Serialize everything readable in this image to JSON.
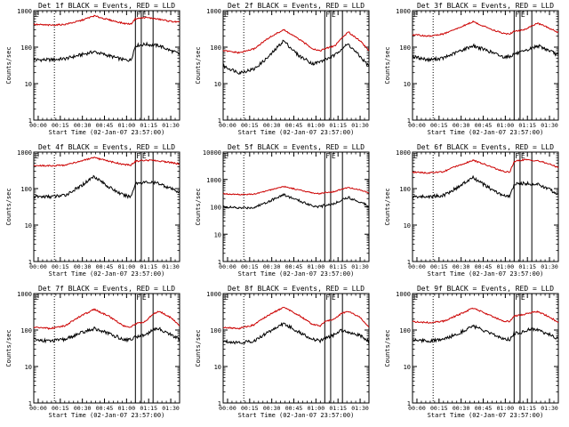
{
  "figure": {
    "xlabel": "Start Time (02-Jan-07 23:57:00)",
    "ylabel": "Counts/sec",
    "x_tick_labels": [
      "00:00",
      "00:15",
      "00:30",
      "00:45",
      "01:00",
      "01:15",
      "01:30"
    ],
    "y_tick_labels": [
      "1",
      "10",
      "100",
      "1000"
    ],
    "marker_labels": [
      "E",
      "F",
      "E"
    ],
    "colors": {
      "events": "#000000",
      "lld": "#cc0000",
      "axes": "#000000"
    }
  },
  "chart_data": [
    {
      "type": "line",
      "title": "Det 1f BLACK = Events, RED = LLD",
      "yscale": "log",
      "ylim": [
        1,
        1000
      ],
      "x": [
        "23:57",
        "00:08",
        "00:18",
        "00:28",
        "00:38",
        "00:48",
        "00:58",
        "01:03",
        "01:06",
        "01:13",
        "01:17",
        "01:22",
        "01:30",
        "01:36"
      ],
      "series": [
        {
          "name": "Events",
          "color": "#000000",
          "values": [
            45,
            45,
            48,
            60,
            75,
            58,
            45,
            44,
            110,
            120,
            115,
            110,
            80,
            65
          ]
        },
        {
          "name": "LLD",
          "color": "#cc0000",
          "values": [
            420,
            400,
            420,
            520,
            720,
            560,
            450,
            430,
            600,
            650,
            620,
            580,
            510,
            480
          ]
        }
      ]
    },
    {
      "type": "line",
      "title": "Det 2f BLACK = Events, RED = LLD",
      "yscale": "log",
      "ylim": [
        1,
        1000
      ],
      "x": [
        "23:57",
        "00:08",
        "00:18",
        "00:28",
        "00:38",
        "00:48",
        "00:58",
        "01:03",
        "01:06",
        "01:13",
        "01:17",
        "01:22",
        "01:30",
        "01:36"
      ],
      "series": [
        {
          "name": "Events",
          "color": "#000000",
          "values": [
            30,
            20,
            25,
            55,
            150,
            60,
            35,
            40,
            45,
            60,
            90,
            120,
            55,
            30
          ]
        },
        {
          "name": "LLD",
          "color": "#cc0000",
          "values": [
            80,
            70,
            90,
            180,
            300,
            170,
            90,
            80,
            90,
            110,
            170,
            260,
            150,
            80
          ]
        }
      ]
    },
    {
      "type": "line",
      "title": "Det 3f BLACK = Events, RED = LLD",
      "yscale": "log",
      "ylim": [
        1,
        1000
      ],
      "x": [
        "23:57",
        "00:08",
        "00:18",
        "00:28",
        "00:38",
        "00:48",
        "00:58",
        "01:03",
        "01:06",
        "01:13",
        "01:17",
        "01:22",
        "01:30",
        "01:36"
      ],
      "series": [
        {
          "name": "Events",
          "color": "#000000",
          "values": [
            55,
            45,
            50,
            75,
            110,
            80,
            55,
            55,
            65,
            75,
            90,
            110,
            80,
            60
          ]
        },
        {
          "name": "LLD",
          "color": "#cc0000",
          "values": [
            220,
            200,
            230,
            330,
            500,
            340,
            240,
            230,
            270,
            300,
            370,
            450,
            330,
            250
          ]
        }
      ]
    },
    {
      "type": "line",
      "title": "Det 4f BLACK = Events, RED = LLD",
      "yscale": "log",
      "ylim": [
        1,
        1000
      ],
      "x": [
        "23:57",
        "00:08",
        "00:18",
        "00:28",
        "00:38",
        "00:48",
        "00:58",
        "01:03",
        "01:06",
        "01:13",
        "01:17",
        "01:22",
        "01:30",
        "01:36"
      ],
      "series": [
        {
          "name": "Events",
          "color": "#000000",
          "values": [
            60,
            60,
            65,
            110,
            220,
            110,
            65,
            60,
            140,
            150,
            145,
            140,
            100,
            80
          ]
        },
        {
          "name": "LLD",
          "color": "#cc0000",
          "values": [
            430,
            420,
            440,
            560,
            700,
            560,
            460,
            440,
            560,
            600,
            590,
            570,
            520,
            470
          ]
        }
      ]
    },
    {
      "type": "line",
      "title": "Det 5f BLACK = Events, RED = LLD",
      "yscale": "log",
      "ylim": [
        1,
        10000
      ],
      "x": [
        "23:57",
        "00:08",
        "00:18",
        "00:28",
        "00:38",
        "00:48",
        "00:58",
        "01:03",
        "01:06",
        "01:13",
        "01:17",
        "01:22",
        "01:30",
        "01:36"
      ],
      "series": [
        {
          "name": "Events",
          "color": "#000000",
          "values": [
            100,
            90,
            95,
            160,
            280,
            170,
            110,
            100,
            115,
            130,
            180,
            220,
            150,
            110
          ]
        },
        {
          "name": "LLD",
          "color": "#cc0000",
          "values": [
            300,
            280,
            290,
            400,
            560,
            420,
            320,
            300,
            330,
            360,
            440,
            500,
            420,
            320
          ]
        }
      ]
    },
    {
      "type": "line",
      "title": "Det 6f BLACK = Events, RED = LLD",
      "yscale": "log",
      "ylim": [
        1,
        1000
      ],
      "x": [
        "23:57",
        "00:08",
        "00:18",
        "00:28",
        "00:38",
        "00:48",
        "00:58",
        "01:03",
        "01:06",
        "01:13",
        "01:17",
        "01:22",
        "01:30",
        "01:36"
      ],
      "series": [
        {
          "name": "Events",
          "color": "#000000",
          "values": [
            60,
            60,
            65,
            110,
            200,
            110,
            65,
            60,
            130,
            140,
            135,
            130,
            95,
            70
          ]
        },
        {
          "name": "LLD",
          "color": "#cc0000",
          "values": [
            280,
            270,
            290,
            430,
            600,
            430,
            300,
            280,
            560,
            620,
            600,
            580,
            470,
            380
          ]
        }
      ]
    },
    {
      "type": "line",
      "title": "Det 7f BLACK = Events, RED = LLD",
      "yscale": "log",
      "ylim": [
        1,
        1000
      ],
      "x": [
        "23:57",
        "00:08",
        "00:18",
        "00:28",
        "00:38",
        "00:48",
        "00:58",
        "01:03",
        "01:06",
        "01:13",
        "01:17",
        "01:22",
        "01:30",
        "01:36"
      ],
      "series": [
        {
          "name": "Events",
          "color": "#000000",
          "values": [
            55,
            50,
            55,
            80,
            110,
            80,
            55,
            55,
            65,
            75,
            95,
            110,
            75,
            55
          ]
        },
        {
          "name": "LLD",
          "color": "#cc0000",
          "values": [
            120,
            110,
            130,
            230,
            370,
            240,
            130,
            120,
            150,
            170,
            260,
            330,
            220,
            130
          ]
        }
      ]
    },
    {
      "type": "line",
      "title": "Det 8f BLACK = Events, RED = LLD",
      "yscale": "log",
      "ylim": [
        1,
        1000
      ],
      "x": [
        "23:57",
        "00:08",
        "00:18",
        "00:28",
        "00:38",
        "00:48",
        "00:58",
        "01:03",
        "01:06",
        "01:13",
        "01:17",
        "01:22",
        "01:30",
        "01:36"
      ],
      "series": [
        {
          "name": "Events",
          "color": "#000000",
          "values": [
            50,
            45,
            50,
            90,
            150,
            90,
            55,
            50,
            60,
            75,
            100,
            90,
            70,
            50
          ]
        },
        {
          "name": "LLD",
          "color": "#cc0000",
          "values": [
            120,
            110,
            140,
            260,
            420,
            260,
            140,
            130,
            170,
            200,
            280,
            330,
            220,
            120
          ]
        }
      ]
    },
    {
      "type": "line",
      "title": "Det 9f BLACK = Events, RED = LLD",
      "yscale": "log",
      "ylim": [
        1,
        1000
      ],
      "x": [
        "23:57",
        "00:08",
        "00:18",
        "00:28",
        "00:38",
        "00:48",
        "00:58",
        "01:03",
        "01:06",
        "01:13",
        "01:17",
        "01:22",
        "01:30",
        "01:36"
      ],
      "series": [
        {
          "name": "Events",
          "color": "#000000",
          "values": [
            55,
            50,
            55,
            80,
            130,
            85,
            60,
            55,
            80,
            90,
            110,
            100,
            75,
            55
          ]
        },
        {
          "name": "LLD",
          "color": "#cc0000",
          "values": [
            170,
            160,
            175,
            260,
            400,
            270,
            180,
            170,
            240,
            270,
            300,
            320,
            230,
            160
          ]
        }
      ]
    }
  ]
}
